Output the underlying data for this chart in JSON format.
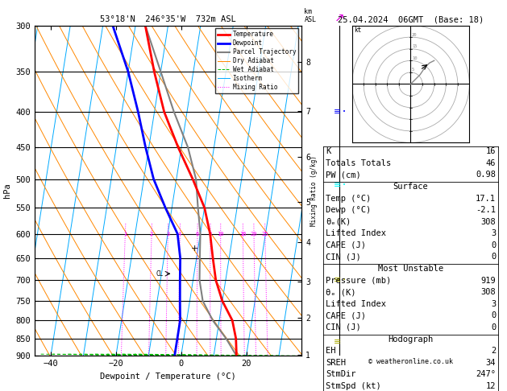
{
  "title_left": "53°18'N  246°35'W  732m ASL",
  "title_right": "25.04.2024  06GMT  (Base: 18)",
  "xlabel": "Dewpoint / Temperature (°C)",
  "ylabel_left": "hPa",
  "pressure_levels": [
    300,
    350,
    400,
    450,
    500,
    550,
    600,
    650,
    700,
    750,
    800,
    850,
    900
  ],
  "temp_color": "#ff0000",
  "dewp_color": "#0000ff",
  "parcel_color": "#808080",
  "dry_adiabat_color": "#ff8800",
  "wet_adiabat_color": "#00bb00",
  "isotherm_color": "#00aaff",
  "mixing_ratio_color": "#ff00ff",
  "background_color": "#ffffff",
  "xlim": [
    -45,
    37
  ],
  "skew_factor": 16.0,
  "km_labels": [
    1,
    2,
    3,
    4,
    5,
    6,
    7,
    8
  ],
  "km_pressures": [
    897,
    793,
    703,
    617,
    539,
    464,
    399,
    339
  ],
  "stats": {
    "K": 16,
    "Totals_Totals": 46,
    "PW_cm": 0.98,
    "Surface": {
      "Temp_C": 17.1,
      "Dewp_C": -2.1,
      "theta_e_K": 308,
      "Lifted_Index": 3,
      "CAPE_J": 0,
      "CIN_J": 0
    },
    "Most_Unstable": {
      "Pressure_mb": 919,
      "theta_e_K": 308,
      "Lifted_Index": 3,
      "CAPE_J": 0,
      "CIN_J": 0
    },
    "Hodograph": {
      "EH": 2,
      "SREH": 34,
      "StmDir": "247°",
      "StmSpd_kt": 12
    }
  },
  "copyright": "© weatheronline.co.uk",
  "font_family": "monospace",
  "font_size": 7.5
}
